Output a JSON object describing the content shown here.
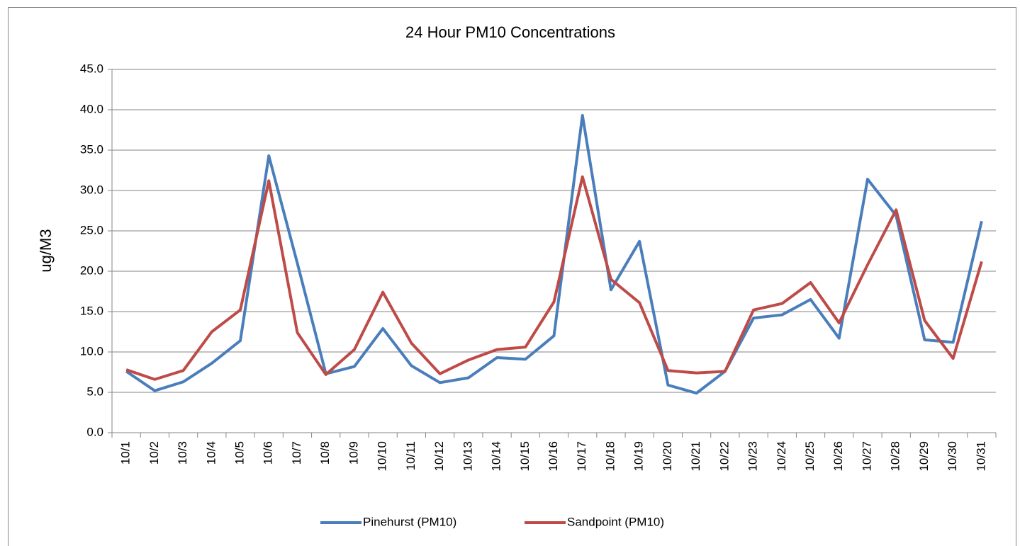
{
  "chart_data": {
    "type": "line",
    "title": "24 Hour PM10 Concentrations",
    "y_label": "ug/M3",
    "categories": [
      "10/1",
      "10/2",
      "10/3",
      "10/4",
      "10/5",
      "10/6",
      "10/7",
      "10/8",
      "10/9",
      "10/10",
      "10/11",
      "10/12",
      "10/13",
      "10/14",
      "10/15",
      "10/16",
      "10/17",
      "10/18",
      "10/19",
      "10/20",
      "10/21",
      "10/22",
      "10/23",
      "10/24",
      "10/25",
      "10/26",
      "10/27",
      "10/28",
      "10/29",
      "10/30",
      "10/31"
    ],
    "series": [
      {
        "name": "Pinehurst (PM10)",
        "color": "#4a7ebb",
        "values": [
          7.6,
          5.2,
          6.3,
          8.6,
          11.4,
          34.3,
          21.0,
          7.3,
          8.2,
          12.9,
          8.3,
          6.2,
          6.8,
          9.3,
          9.1,
          12.0,
          39.3,
          17.7,
          23.7,
          5.9,
          4.9,
          7.6,
          14.2,
          14.6,
          16.5,
          11.7,
          31.4,
          26.9,
          11.5,
          11.2,
          26.2
        ]
      },
      {
        "name": "Sandpoint (PM10)",
        "color": "#be4b48",
        "values": [
          7.8,
          6.6,
          7.7,
          12.5,
          15.2,
          31.2,
          12.4,
          7.2,
          10.3,
          17.4,
          11.1,
          7.3,
          9.0,
          10.3,
          10.6,
          16.2,
          31.7,
          19.0,
          16.1,
          7.7,
          7.4,
          7.6,
          15.2,
          16.0,
          18.6,
          13.6,
          20.8,
          27.6,
          13.9,
          9.2,
          21.2
        ]
      }
    ],
    "ylim": [
      0,
      45
    ],
    "yticks": [
      {
        "value": 0,
        "label": "0.0"
      },
      {
        "value": 5,
        "label": "5.0"
      },
      {
        "value": 10,
        "label": "10.0"
      },
      {
        "value": 15,
        "label": "15.0"
      },
      {
        "value": 20,
        "label": "20.0"
      },
      {
        "value": 25,
        "label": "25.0"
      },
      {
        "value": 30,
        "label": "30.0"
      },
      {
        "value": 35,
        "label": "35.0"
      },
      {
        "value": 40,
        "label": "40.0"
      },
      {
        "value": 45,
        "label": "45.0"
      }
    ],
    "grid": true,
    "legend": "bottom"
  }
}
